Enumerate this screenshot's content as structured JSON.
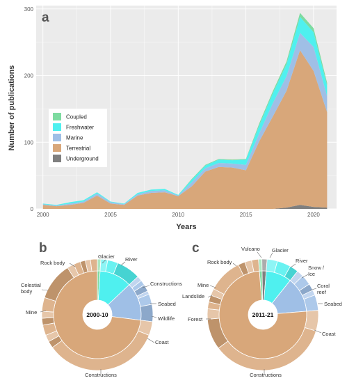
{
  "colors": {
    "Coupled": "#7ddba0",
    "Freshwater": "#4ff0ef",
    "Marine": "#9fbfe6",
    "Terrestrial": "#d8a77a",
    "Underground": "#7f7f7f",
    "panel_bg": "#ebebeb",
    "grid": "#ffffff"
  },
  "chart_data": [
    {
      "type": "area",
      "panel": "a",
      "xlabel": "Years",
      "ylabel": "Number of publications",
      "xlim": [
        1999.5,
        2021.7
      ],
      "ylim": [
        0,
        305
      ],
      "xticks": [
        2000,
        2005,
        2010,
        2015,
        2020
      ],
      "yticks": [
        0,
        100,
        200,
        300
      ],
      "grid": true,
      "legend_position": "middle-left",
      "legend": [
        "Coupled",
        "Freshwater",
        "Marine",
        "Terrestrial",
        "Underground"
      ],
      "x": [
        2000,
        2001,
        2002,
        2003,
        2004,
        2005,
        2006,
        2007,
        2008,
        2009,
        2010,
        2011,
        2012,
        2013,
        2014,
        2015,
        2016,
        2017,
        2018,
        2019,
        2020,
        2021
      ],
      "series": [
        {
          "name": "Underground",
          "values": [
            0,
            0,
            0,
            0,
            0,
            0,
            0,
            0,
            0,
            0,
            0,
            0,
            0,
            0,
            0,
            0,
            0,
            0,
            2,
            6,
            3,
            2
          ]
        },
        {
          "name": "Terrestrial",
          "values": [
            6,
            4,
            6,
            9,
            20,
            8,
            6,
            20,
            24,
            25,
            19,
            34,
            56,
            63,
            62,
            58,
            102,
            139,
            175,
            232,
            204,
            143
          ]
        },
        {
          "name": "Marine",
          "values": [
            1,
            1,
            2,
            2,
            3,
            2,
            1,
            2,
            3,
            3,
            1,
            6,
            5,
            6,
            6,
            8,
            12,
            20,
            22,
            26,
            36,
            24
          ]
        },
        {
          "name": "Freshwater",
          "values": [
            1,
            1,
            2,
            2,
            2,
            1,
            1,
            2,
            2,
            2,
            1,
            4,
            4,
            5,
            5,
            8,
            12,
            15,
            18,
            24,
            22,
            16
          ]
        },
        {
          "name": "Coupled",
          "values": [
            0,
            0,
            0,
            0,
            0,
            0,
            0,
            0,
            0,
            0,
            0,
            1,
            1,
            1,
            1,
            1,
            3,
            3,
            4,
            6,
            6,
            4
          ]
        }
      ]
    },
    {
      "type": "pie",
      "panel": "b",
      "subtype": "sunburst",
      "center_label": "2000-10",
      "inner": [
        {
          "name": "Coupled",
          "value": 1
        },
        {
          "name": "Freshwater",
          "value": 12
        },
        {
          "name": "Marine",
          "value": 14
        },
        {
          "name": "Terrestrial",
          "value": 73
        }
      ],
      "outer": [
        {
          "parent": "Coupled",
          "value": 1
        },
        {
          "parent": "Freshwater",
          "value": 2
        },
        {
          "parent": "Freshwater",
          "value": 3
        },
        {
          "parent": "Freshwater",
          "value": 7
        },
        {
          "parent": "Marine",
          "value": 1.5
        },
        {
          "parent": "Marine",
          "value": 1.5
        },
        {
          "parent": "Marine",
          "value": 2
        },
        {
          "parent": "Marine",
          "value": 1
        },
        {
          "parent": "Marine",
          "value": 3
        },
        {
          "parent": "Marine",
          "value": 5
        },
        {
          "parent": "Terrestrial",
          "value": 4
        },
        {
          "parent": "Terrestrial",
          "value": 34
        },
        {
          "parent": "Terrestrial",
          "value": 2
        },
        {
          "parent": "Terrestrial",
          "value": 2
        },
        {
          "parent": "Terrestrial",
          "value": 3
        },
        {
          "parent": "Terrestrial",
          "value": 2
        },
        {
          "parent": "Terrestrial",
          "value": 2
        },
        {
          "parent": "Terrestrial",
          "value": 4
        },
        {
          "parent": "Terrestrial",
          "value": 11
        },
        {
          "parent": "Terrestrial",
          "value": 2
        },
        {
          "parent": "Terrestrial",
          "value": 2
        },
        {
          "parent": "Terrestrial",
          "value": 1.5
        },
        {
          "parent": "Terrestrial",
          "value": 1.5
        },
        {
          "parent": "Terrestrial",
          "value": 2
        }
      ],
      "labels": [
        "Glacier",
        "River",
        "Constructions",
        "Seabed",
        "Wildlife",
        "Coast",
        "Constructions",
        "Mine",
        "Celestial body",
        "Rock body"
      ]
    },
    {
      "type": "pie",
      "panel": "c",
      "subtype": "sunburst",
      "center_label": "2011-21",
      "inner": [
        {
          "name": "Coupled",
          "value": 1
        },
        {
          "name": "Underground",
          "value": 1.5
        },
        {
          "name": "Freshwater",
          "value": 9.5
        },
        {
          "name": "Marine",
          "value": 13
        },
        {
          "name": "Terrestrial",
          "value": 75
        }
      ],
      "outer": [
        {
          "parent": "Coupled",
          "value": 1
        },
        {
          "parent": "Underground",
          "value": 1.5
        },
        {
          "parent": "Freshwater",
          "value": 3
        },
        {
          "parent": "Freshwater",
          "value": 4
        },
        {
          "parent": "Freshwater",
          "value": 2.5
        },
        {
          "parent": "Marine",
          "value": 2
        },
        {
          "parent": "Marine",
          "value": 3
        },
        {
          "parent": "Marine",
          "value": 2
        },
        {
          "parent": "Marine",
          "value": 1.5
        },
        {
          "parent": "Marine",
          "value": 4.5
        },
        {
          "parent": "Terrestrial",
          "value": 6
        },
        {
          "parent": "Terrestrial",
          "value": 35
        },
        {
          "parent": "Terrestrial",
          "value": 9
        },
        {
          "parent": "Terrestrial",
          "value": 3
        },
        {
          "parent": "Terrestrial",
          "value": 2
        },
        {
          "parent": "Terrestrial",
          "value": 2
        },
        {
          "parent": "Terrestrial",
          "value": 2
        },
        {
          "parent": "Terrestrial",
          "value": 10
        },
        {
          "parent": "Terrestrial",
          "value": 2
        },
        {
          "parent": "Terrestrial",
          "value": 2
        },
        {
          "parent": "Terrestrial",
          "value": 2
        }
      ],
      "labels": [
        "Vulcano",
        "Glacier",
        "River",
        "Snow / Ice",
        "Coral reef",
        "Seabed",
        "Coast",
        "Constructions",
        "Forest",
        "Landslide",
        "Mine",
        "Rock body"
      ]
    }
  ]
}
